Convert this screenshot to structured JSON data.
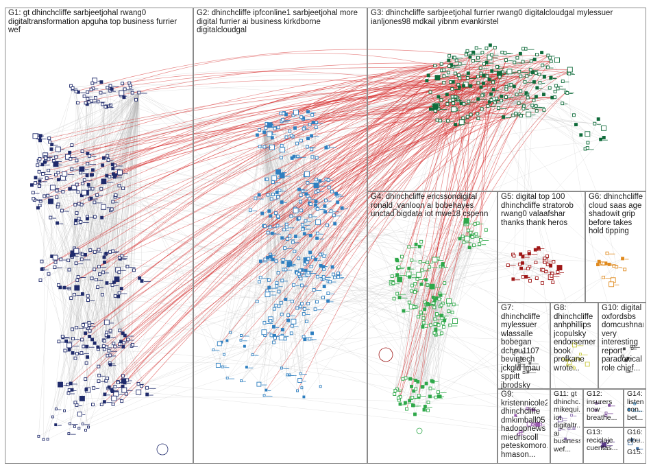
{
  "title": "",
  "groups": [
    {
      "id": "G1",
      "label": "G1: gt dhinchcliffe sarbjeetjohal rwang0 digitaltransformation apguha top business furrier wef"
    },
    {
      "id": "G2",
      "label": "G2: dhinchcliffe ipfconline1 sarbjeetjohal more digital furrier ai business kirkdborne digitalcloudgal"
    },
    {
      "id": "G3",
      "label": "G3: dhinchcliffe sarbjeetjohal furrier rwang0 digitalcloudgal mylessuer ianljones98 mdkail yibnm evankirstel"
    },
    {
      "id": "G4",
      "label": "G4: dhinchcliffe ericssondigital ronald_vanloon ai bobehayes unctad bigdata iot mwe18 cspenn"
    },
    {
      "id": "G5",
      "label": "G5: digital top 100 dhinchcliffe stratorob rwang0 valaafshar thanks thank heros"
    },
    {
      "id": "G6",
      "label": "G6: dhinchcliffe cloud saas age shadowit grip before takes hold tipping"
    },
    {
      "id": "G7",
      "label": "G7: dhinchcliffe mylessuer wlassalle bobegan dchou1107 bevintech jckgld lmau sppitt jbrodsky"
    },
    {
      "id": "G8",
      "label": "G8: dhinchcliffe anhphillips jcopulsky endorsement book profkane wrote..."
    },
    {
      "id": "G9",
      "label": "G9: kristennicole2 dhinchcliffe dmkimball05 hadoopnews miedriscoll peteskomoro... hmason..."
    },
    {
      "id": "G10",
      "label": "G10: digital oxfordsbs domcushnan very interesting report paradoxical role chief..."
    },
    {
      "id": "G11",
      "label": "G11: gt dhinchc... mikequi... iot digitaltr... ai business wef..."
    },
    {
      "id": "G12",
      "label": "G12: insurers now breathe..."
    },
    {
      "id": "G13",
      "label": "G13: reciclaje cuentas..."
    },
    {
      "id": "G14",
      "label": "G14: listen con... bet..."
    },
    {
      "id": "G15",
      "label": "G15..."
    },
    {
      "id": "G16",
      "label": "G16: clou..."
    }
  ],
  "colors": {
    "edge_within": "#b9b9b9",
    "edge_between": "#d42020",
    "frame": "#8a8a8a",
    "G1": "#1f2a6b",
    "G2": "#2e7fc0",
    "G3": "#0f6b3a",
    "G4": "#2fa84a",
    "G5": "#a01818",
    "G6": "#e08a1e",
    "G7": "#6b6b6b",
    "G8": "#c9c940",
    "G9": "#9a5ab0",
    "G10": "#4a4a4a",
    "G11": "#8a6fb0",
    "G12": "#7a4a9a",
    "G13": "#5a3a8a",
    "G14": "#3a8ac0",
    "G15": "#555555",
    "G16": "#3a6aa0"
  }
}
